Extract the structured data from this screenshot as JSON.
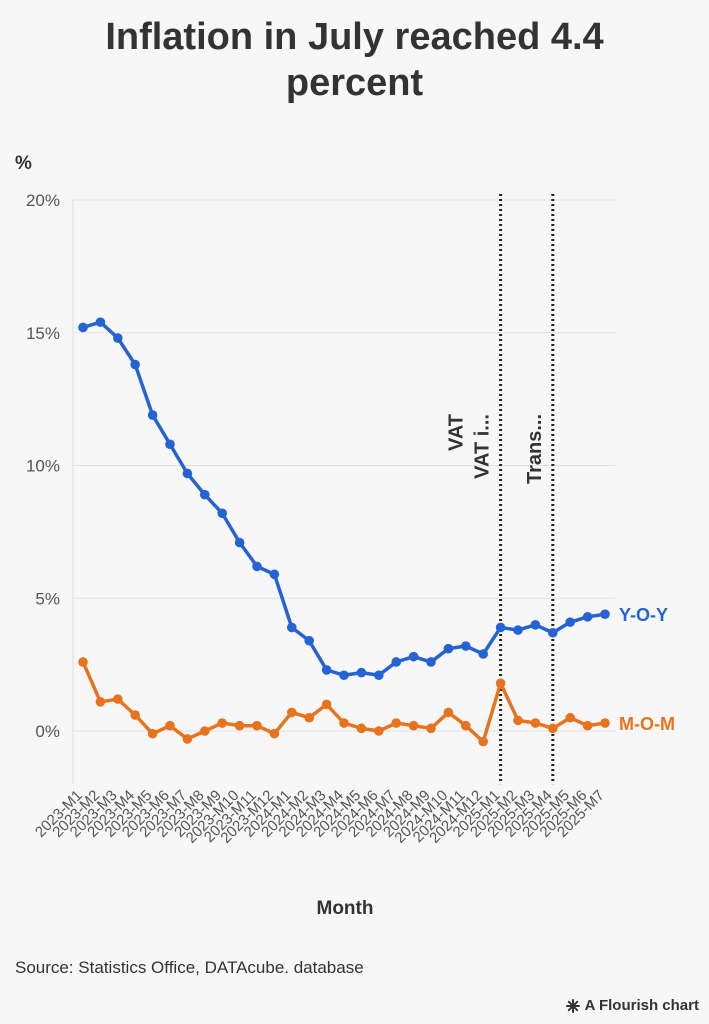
{
  "title": "Inflation in July reached 4.4 percent",
  "source": "Source: Statistics Office, DATAcube. database",
  "credit": {
    "text": "A Flourish chart",
    "icon": "flourish-asterisk-icon"
  },
  "chart_data": {
    "type": "line",
    "ylabel": "%",
    "xlabel": "Month",
    "ylim": [
      -2,
      20
    ],
    "yticks": [
      0,
      5,
      10,
      15,
      20
    ],
    "ytick_labels": [
      "0%",
      "5%",
      "10%",
      "15%",
      "20%"
    ],
    "grid": true,
    "x": [
      "2023-M1",
      "2023-M2",
      "2023-M3",
      "2023-M4",
      "2023-M5",
      "2023-M6",
      "2023-M7",
      "2023-M8",
      "2023-M9",
      "2023-M10",
      "2023-M11",
      "2023-M12",
      "2024-M1",
      "2024-M2",
      "2024-M3",
      "2024-M4",
      "2024-M5",
      "2024-M6",
      "2024-M7",
      "2024-M8",
      "2024-M9",
      "2024-M10",
      "2024-M11",
      "2024-M12",
      "2025-M1",
      "2025-M2",
      "2025-M3",
      "2025-M4",
      "2025-M5",
      "2025-M6",
      "2025-M7"
    ],
    "series": [
      {
        "name": "Y-O-Y",
        "color": "#2563d4",
        "values": [
          15.2,
          15.4,
          14.8,
          13.8,
          11.9,
          10.8,
          9.7,
          8.9,
          8.2,
          7.1,
          6.2,
          5.9,
          3.9,
          3.4,
          2.3,
          2.1,
          2.2,
          2.1,
          2.6,
          2.8,
          2.6,
          3.1,
          3.2,
          2.9,
          3.9,
          3.8,
          4.0,
          3.7,
          4.1,
          4.3,
          4.4
        ]
      },
      {
        "name": "M-O-M",
        "color": "#e8731e",
        "values": [
          2.6,
          1.1,
          1.2,
          0.6,
          -0.1,
          0.2,
          -0.3,
          0.0,
          0.3,
          0.2,
          0.2,
          -0.1,
          0.7,
          0.5,
          1.0,
          0.3,
          0.1,
          0.0,
          0.3,
          0.2,
          0.1,
          0.7,
          0.2,
          -0.4,
          1.8,
          0.4,
          0.3,
          0.1,
          0.5,
          0.2,
          0.3
        ]
      }
    ],
    "annotations": [
      {
        "x": "2025-M1",
        "labels": [
          "VAT",
          "VAT i..."
        ]
      },
      {
        "x": "2025-M4",
        "labels": [
          "Trans..."
        ]
      }
    ]
  }
}
